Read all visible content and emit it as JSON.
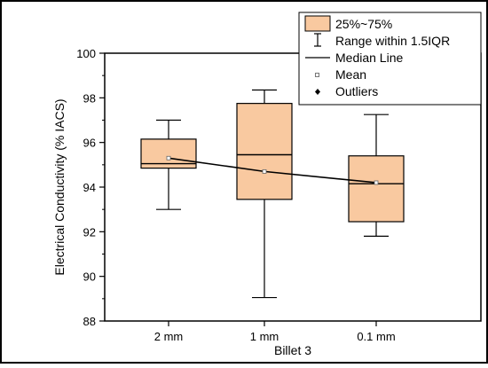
{
  "chart_data": {
    "type": "box",
    "title": "",
    "xlabel": "Billet 3",
    "ylabel": "Electrical Conductivity (% IACS)",
    "ylim": [
      88,
      100
    ],
    "yticks": [
      88,
      90,
      92,
      94,
      96,
      98,
      100
    ],
    "categories": [
      "2 mm",
      "1 mm",
      "0.1 mm"
    ],
    "boxes": [
      {
        "category": "2 mm",
        "whisker_low": 93.0,
        "q1": 94.85,
        "median": 95.05,
        "q3": 96.15,
        "whisker_high": 97.0,
        "mean": 95.3
      },
      {
        "category": "1 mm",
        "whisker_low": 89.05,
        "q1": 93.45,
        "median": 95.45,
        "q3": 97.75,
        "whisker_high": 98.35,
        "mean": 94.7
      },
      {
        "category": "0.1 mm",
        "whisker_low": 91.8,
        "q1": 92.45,
        "median": 94.15,
        "q3": 95.4,
        "whisker_high": 97.25,
        "mean": 94.2
      }
    ],
    "mean_line": true,
    "grid": false,
    "legend_position": "top-right",
    "legend": [
      {
        "key": "box",
        "label": "25%~75%"
      },
      {
        "key": "whisker",
        "label": "Range within 1.5IQR"
      },
      {
        "key": "median",
        "label": "Median Line"
      },
      {
        "key": "mean",
        "label": "Mean"
      },
      {
        "key": "outlier",
        "label": "Outliers"
      }
    ],
    "colors": {
      "box_fill": "#f9c9a0",
      "stroke": "#000000",
      "mean_marker": "#ffffff"
    }
  }
}
